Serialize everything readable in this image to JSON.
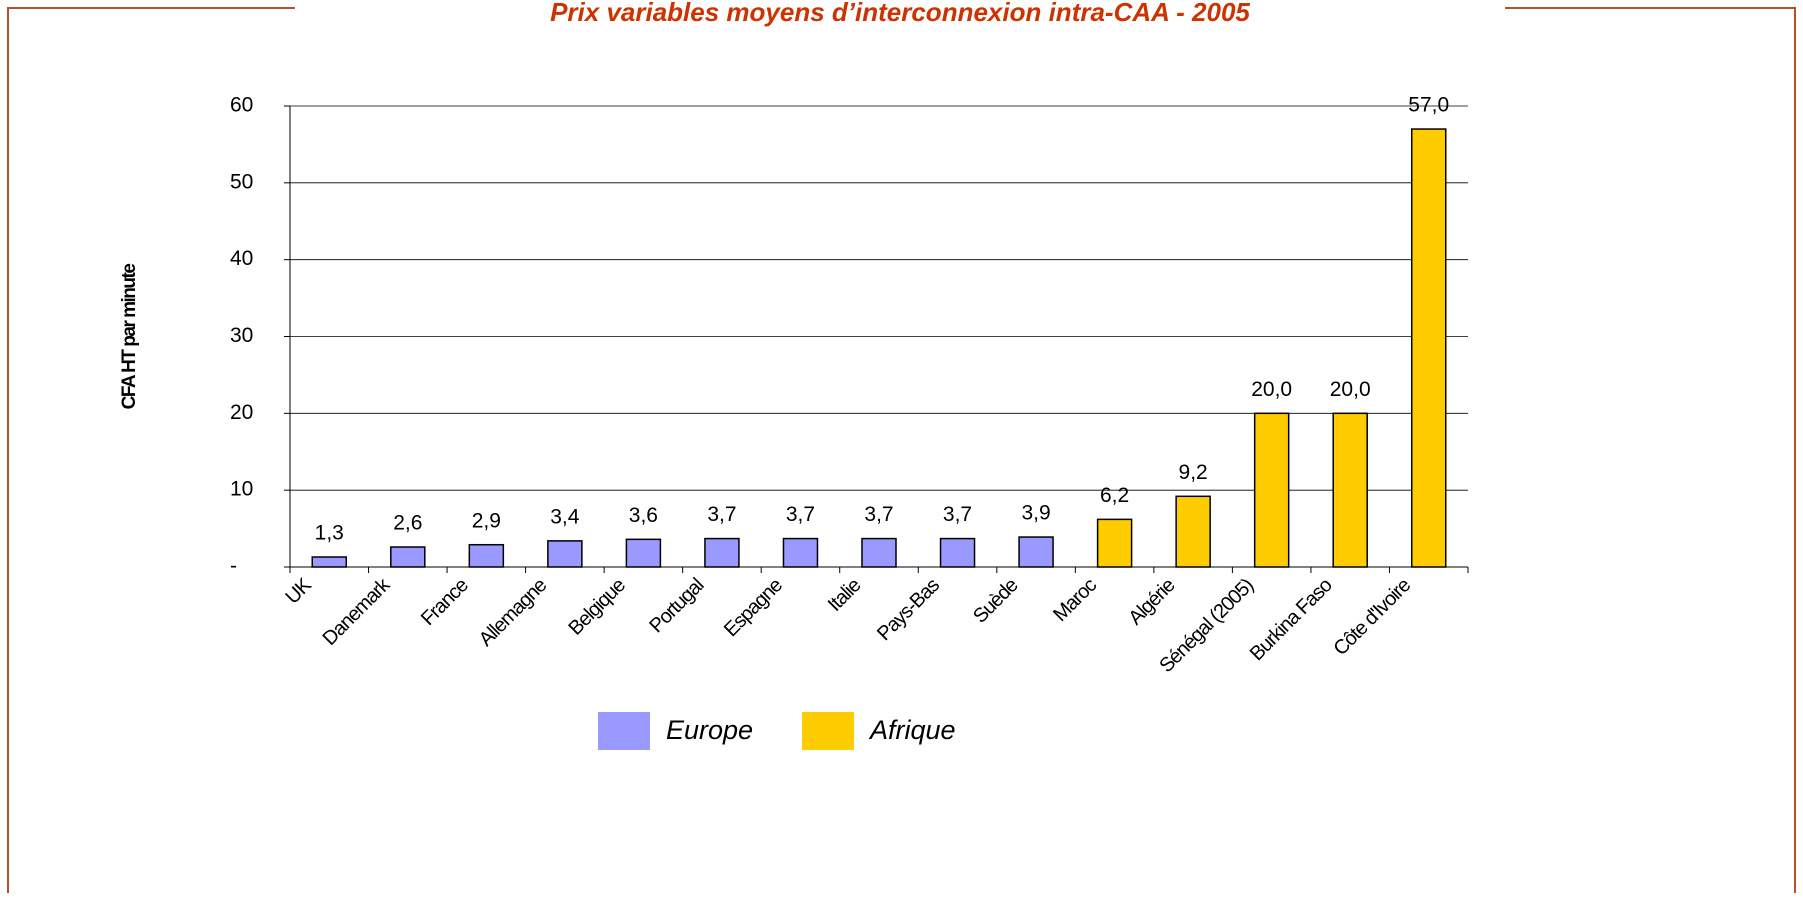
{
  "chart_data": {
    "type": "bar",
    "title": "Prix variables moyens d’interconnexion intra-CAA - 2005",
    "y_label": "CFA HT par minute",
    "categories": [
      "UK",
      "Danemark",
      "France",
      "Allemagne",
      "Belgique",
      "Portugal",
      "Espagne",
      "Italie",
      "Pays-Bas",
      "Suède",
      "Maroc",
      "Algérie",
      "Sénégal (2005)",
      "Burkina Faso",
      "Côte d'Ivoire"
    ],
    "series": [
      {
        "name": "Europe",
        "color": "#9999ff",
        "values": [
          1.3,
          2.6,
          2.9,
          3.4,
          3.6,
          3.7,
          3.7,
          3.7,
          3.7,
          3.9,
          null,
          null,
          null,
          null,
          null
        ],
        "value_labels": [
          "1,3",
          "2,6",
          "2,9",
          "3,4",
          "3,6",
          "3,7",
          "3,7",
          "3,7",
          "3,7",
          "3,9",
          null,
          null,
          null,
          null,
          null
        ]
      },
      {
        "name": "Afrique",
        "color": "#ffcc00",
        "values": [
          null,
          null,
          null,
          null,
          null,
          null,
          null,
          null,
          null,
          null,
          6.2,
          9.2,
          20,
          20,
          57
        ],
        "value_labels": [
          null,
          null,
          null,
          null,
          null,
          null,
          null,
          null,
          null,
          null,
          "6,2",
          "9,2",
          "20,0",
          "20,0",
          "57,0"
        ]
      }
    ],
    "ylim": [
      0,
      60
    ],
    "yticks": [
      {
        "value": 0,
        "label": "-"
      },
      10,
      20,
      30,
      40,
      50,
      60
    ],
    "grid": true
  }
}
